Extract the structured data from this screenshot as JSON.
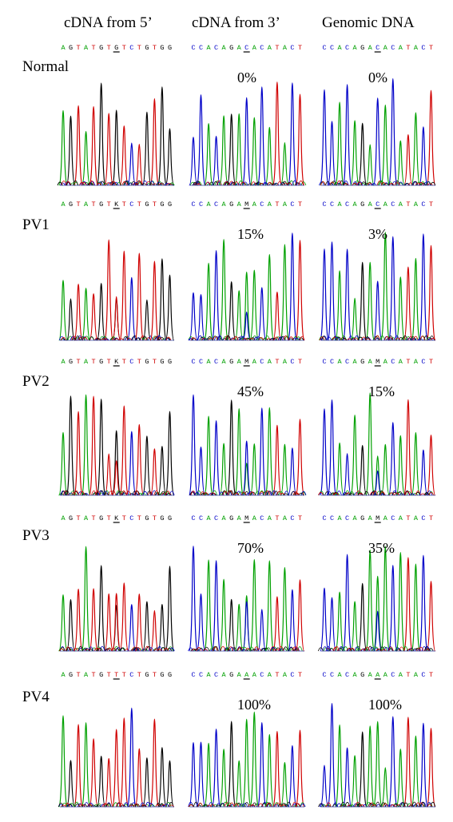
{
  "columns": [
    {
      "id": "c5",
      "title": "cDNA from 5’"
    },
    {
      "id": "c3",
      "title": "cDNA from 3’"
    },
    {
      "id": "gen",
      "title": "Genomic DNA"
    }
  ],
  "base_colors": {
    "A": "#00a000",
    "C": "#0000c8",
    "G": "#000000",
    "T": "#d00000",
    "K": "#000000",
    "M": "#000000"
  },
  "rows": [
    {
      "label": "Normal",
      "panels": [
        {
          "sequence": "AGTATGTGTCTGTGG",
          "marked_index": 7,
          "percent": ""
        },
        {
          "sequence": "CCACAGACACATACT",
          "marked_index": 7,
          "percent": "0%"
        },
        {
          "sequence": "CCACAGACACATACT",
          "marked_index": 7,
          "percent": "0%"
        }
      ]
    },
    {
      "label": "PV1",
      "panels": [
        {
          "sequence": "AGTATGTKTCTGTGG",
          "marked_index": 7,
          "percent": ""
        },
        {
          "sequence": "CCACAGAMACATACT",
          "marked_index": 7,
          "percent": "15%"
        },
        {
          "sequence": "CCACAGACACATACT",
          "marked_index": 7,
          "percent": "3%"
        }
      ]
    },
    {
      "label": "PV2",
      "panels": [
        {
          "sequence": "AGTATGTKTCTGTGG",
          "marked_index": 7,
          "percent": ""
        },
        {
          "sequence": "CCACAGAMACATACT",
          "marked_index": 7,
          "percent": "45%"
        },
        {
          "sequence": "CCACAGAMACATACT",
          "marked_index": 7,
          "percent": "15%"
        }
      ]
    },
    {
      "label": "PV3",
      "panels": [
        {
          "sequence": "AGTATGTKTCTGTGG",
          "marked_index": 7,
          "percent": ""
        },
        {
          "sequence": "CCACAGAMACATACT",
          "marked_index": 7,
          "percent": "70%"
        },
        {
          "sequence": "CCACAGAMACATACT",
          "marked_index": 7,
          "percent": "35%"
        }
      ]
    },
    {
      "label": "PV4",
      "panels": [
        {
          "sequence": "AGTATGTTTCTGTGG",
          "marked_index": 7,
          "percent": ""
        },
        {
          "sequence": "CCACAGAAACATACT",
          "marked_index": 7,
          "percent": "100%"
        },
        {
          "sequence": "CCACAGAAACATACT",
          "marked_index": 7,
          "percent": "100%"
        }
      ]
    }
  ]
}
